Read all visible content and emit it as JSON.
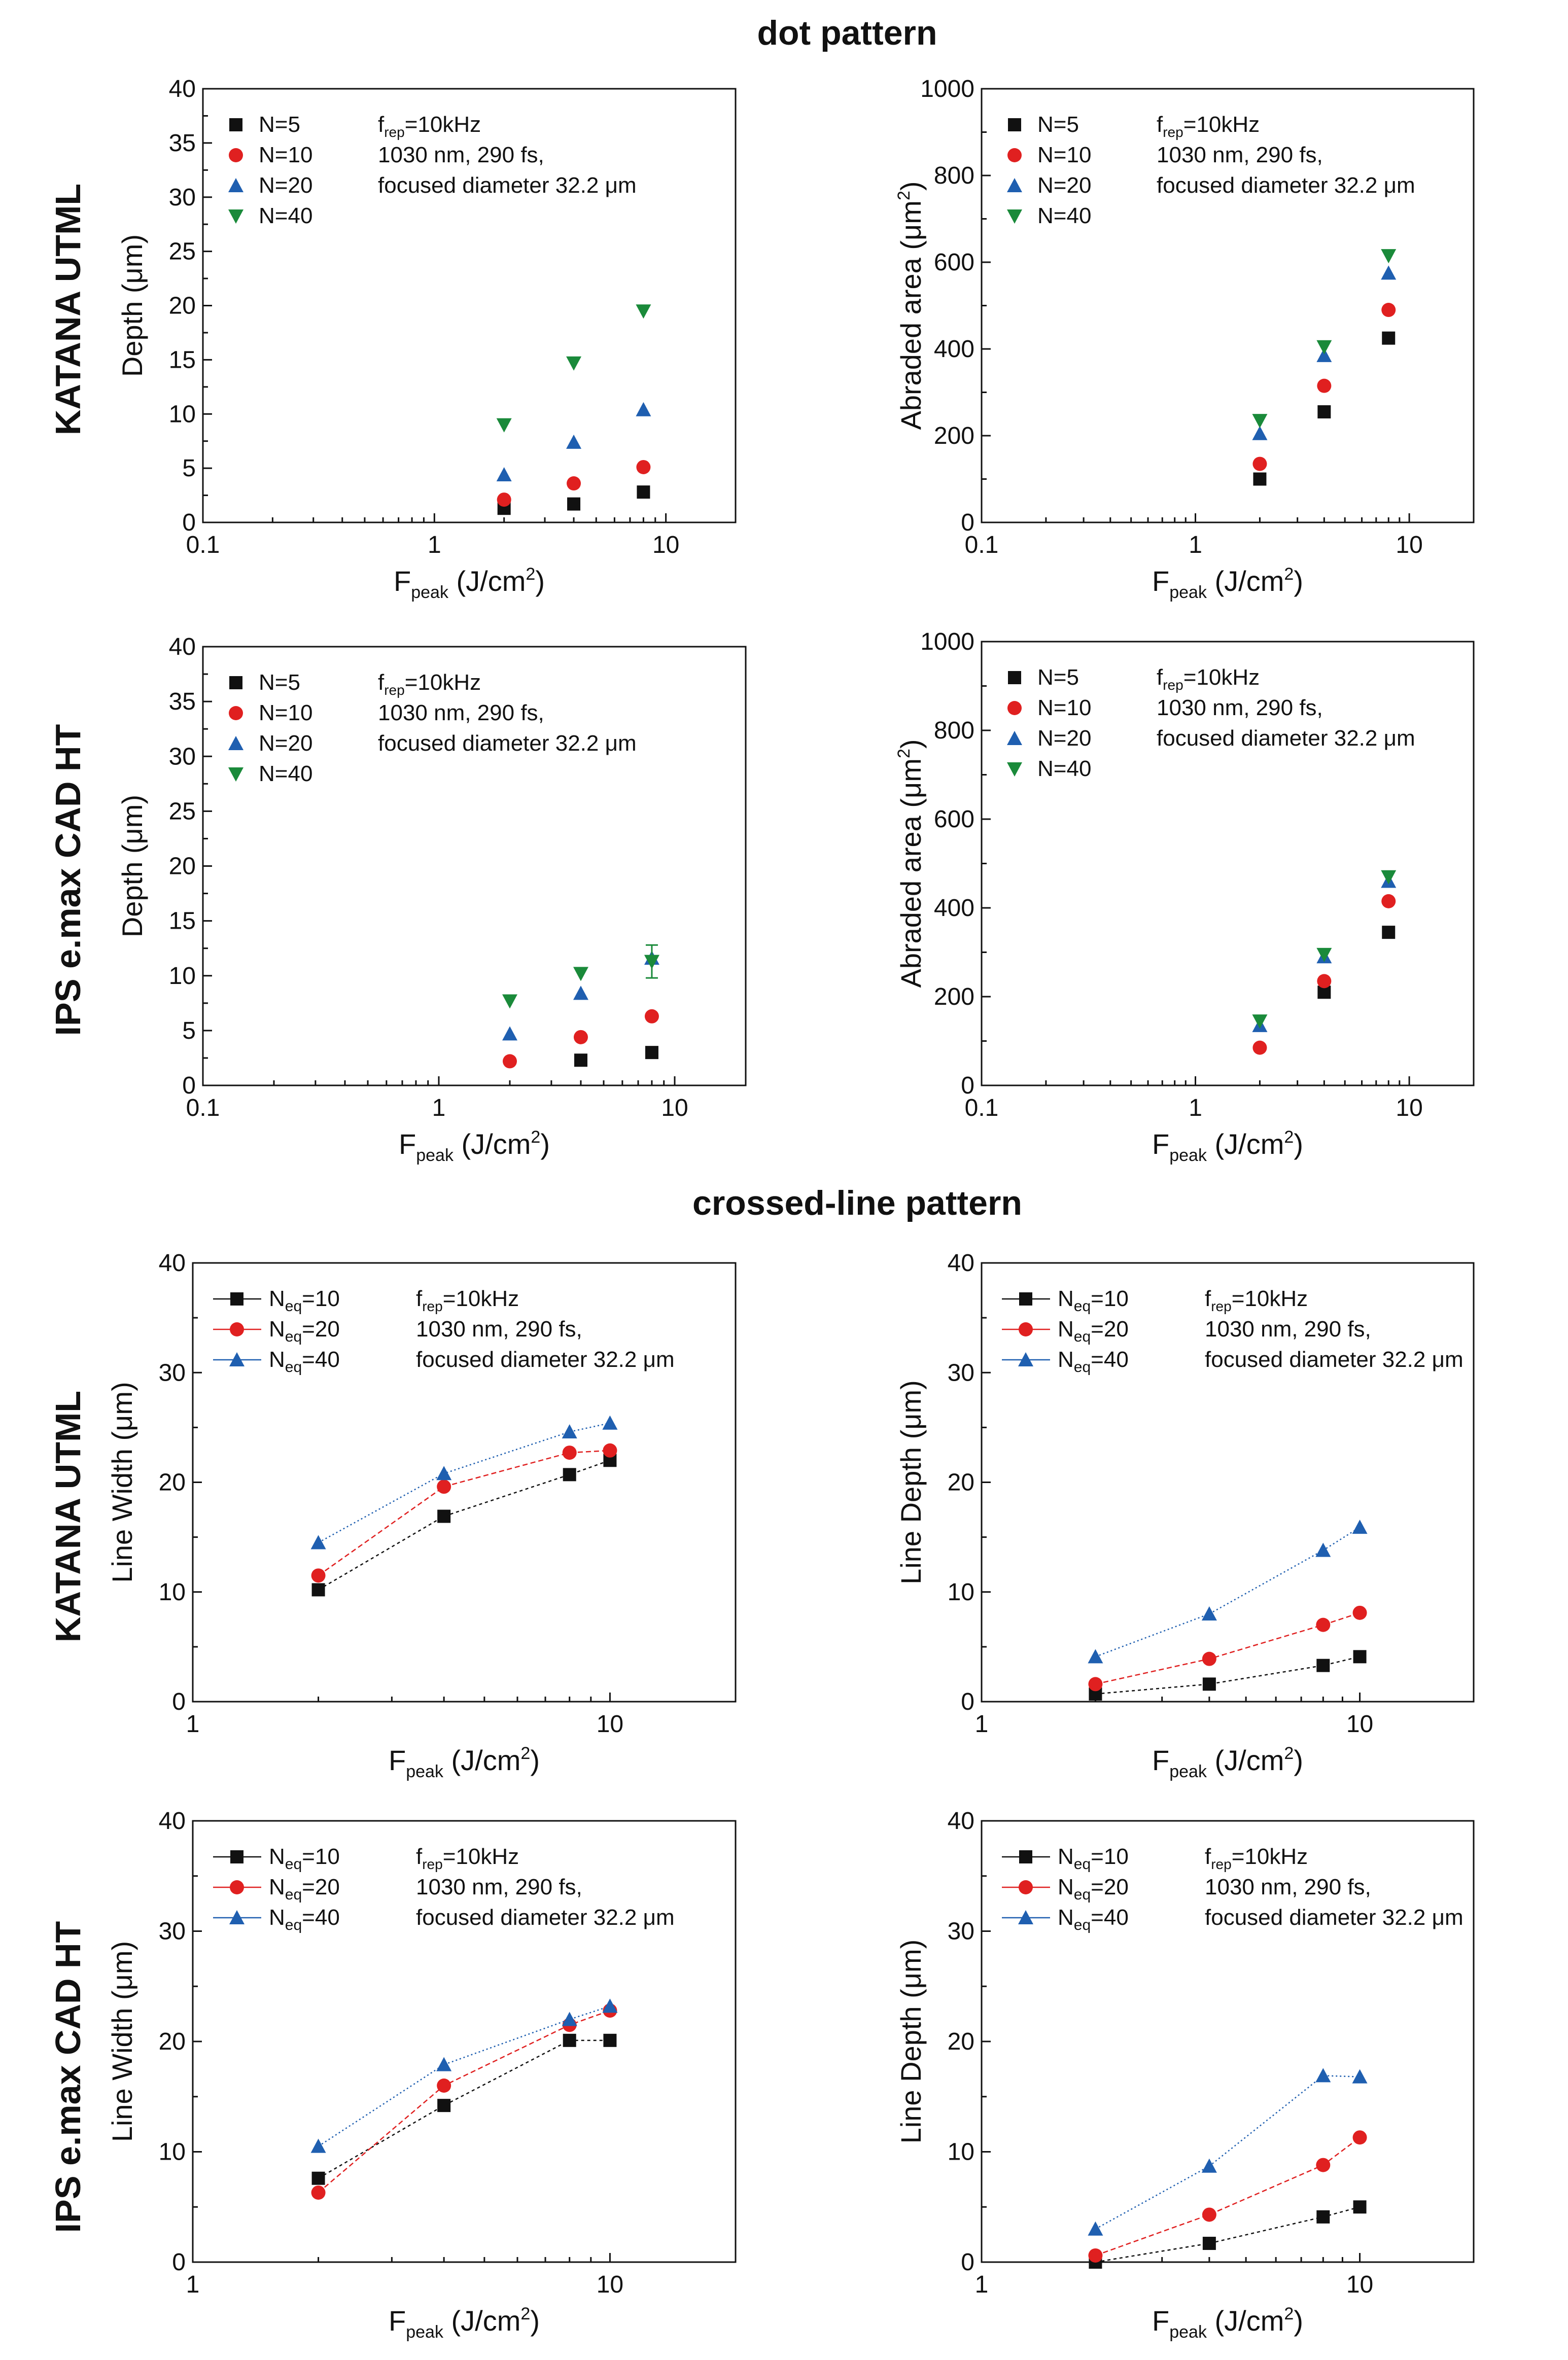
{
  "figure": {
    "dot_title": "dot pattern",
    "line_title": "crossed-line pattern",
    "row_labels": [
      "KATANA UTML",
      "IPS e.max CAD HT",
      "KATANA UTML",
      "IPS e.max CAD HT"
    ]
  },
  "colors": {
    "N5": "#111111",
    "N10": "#e02020",
    "N20": "#1f5fb0",
    "N40": "#1a8a3a"
  },
  "chart_data": [
    {
      "id": "dot-katana-depth",
      "type": "scatter",
      "xscale": "log",
      "xlim": [
        0.1,
        20
      ],
      "ylim": [
        0,
        40
      ],
      "xticks": [
        "0.1",
        "1",
        "10"
      ],
      "yticks": [
        "0",
        "5",
        "10",
        "15",
        "20",
        "25",
        "30",
        "35",
        "40"
      ],
      "xlabel_main": "F",
      "xlabel_sub": "peak",
      "xlabel_rest": " (J/cm",
      "xlabel_sup": "2",
      "xlabel_end": ")",
      "ylabel_main": "Depth (μm)",
      "ylabel_sup": "",
      "ylabel_end": "",
      "legend_style": "dot",
      "notes": [
        "f",
        "rep",
        "=10kHz",
        "1030 nm, 290 fs,",
        "focused diameter 32.2 μm"
      ],
      "series": [
        {
          "name": "N=5",
          "nm": "N",
          "sub": "",
          "rest": "=5",
          "marker": "square",
          "color": "#111111",
          "x": [
            2,
            4,
            8
          ],
          "y": [
            1.3,
            1.7,
            2.8
          ]
        },
        {
          "name": "N=10",
          "nm": "N",
          "sub": "",
          "rest": "=10",
          "marker": "circle",
          "color": "#e02020",
          "x": [
            2,
            4,
            8
          ],
          "y": [
            2.1,
            3.6,
            5.1
          ]
        },
        {
          "name": "N=20",
          "nm": "N",
          "sub": "",
          "rest": "=20",
          "marker": "triangle",
          "color": "#1f5fb0",
          "x": [
            2,
            4,
            8
          ],
          "y": [
            4.4,
            7.4,
            10.4
          ]
        },
        {
          "name": "N=40",
          "nm": "N",
          "sub": "",
          "rest": "=40",
          "marker": "triangle-down",
          "color": "#1a8a3a",
          "x": [
            2,
            4,
            8
          ],
          "y": [
            9.0,
            14.7,
            19.5
          ]
        }
      ]
    },
    {
      "id": "dot-katana-area",
      "type": "scatter",
      "xscale": "log",
      "xlim": [
        0.1,
        20
      ],
      "ylim": [
        0,
        1000
      ],
      "xticks": [
        "0.1",
        "1",
        "10"
      ],
      "yticks": [
        "0",
        "200",
        "400",
        "600",
        "800",
        "1000"
      ],
      "xlabel_main": "F",
      "xlabel_sub": "peak",
      "xlabel_rest": " (J/cm",
      "xlabel_sup": "2",
      "xlabel_end": ")",
      "ylabel_main": "Abraded area (μm",
      "ylabel_sup": "2",
      "ylabel_end": ")",
      "legend_style": "dot",
      "notes": [
        "f",
        "rep",
        "=10kHz",
        "1030 nm, 290 fs,",
        "focused diameter 32.2 μm"
      ],
      "series": [
        {
          "name": "N=5",
          "nm": "N",
          "sub": "",
          "rest": "=5",
          "marker": "square",
          "color": "#111111",
          "x": [
            2,
            4,
            8
          ],
          "y": [
            100,
            255,
            425
          ]
        },
        {
          "name": "N=10",
          "nm": "N",
          "sub": "",
          "rest": "=10",
          "marker": "circle",
          "color": "#e02020",
          "x": [
            2,
            4,
            8
          ],
          "y": [
            135,
            315,
            490
          ]
        },
        {
          "name": "N=20",
          "nm": "N",
          "sub": "",
          "rest": "=20",
          "marker": "triangle",
          "color": "#1f5fb0",
          "x": [
            2,
            4,
            8
          ],
          "y": [
            205,
            385,
            575
          ]
        },
        {
          "name": "N=40",
          "nm": "N",
          "sub": "",
          "rest": "=40",
          "marker": "triangle-down",
          "color": "#1a8a3a",
          "x": [
            2,
            4,
            8
          ],
          "y": [
            235,
            405,
            615
          ]
        }
      ]
    },
    {
      "id": "dot-ips-depth",
      "type": "scatter",
      "xscale": "log",
      "xlim": [
        0.1,
        20
      ],
      "ylim": [
        0,
        40
      ],
      "xticks": [
        "0.1",
        "1",
        "10"
      ],
      "yticks": [
        "0",
        "5",
        "10",
        "15",
        "20",
        "25",
        "30",
        "35",
        "40"
      ],
      "xlabel_main": "F",
      "xlabel_sub": "peak",
      "xlabel_rest": " (J/cm",
      "xlabel_sup": "2",
      "xlabel_end": ")",
      "ylabel_main": "Depth (μm)",
      "ylabel_sup": "",
      "ylabel_end": "",
      "legend_style": "dot",
      "notes": [
        "f",
        "rep",
        "=10kHz",
        "1030 nm, 290 fs,",
        "focused diameter 32.2 μm"
      ],
      "series": [
        {
          "name": "N=5",
          "nm": "N",
          "sub": "",
          "rest": "=5",
          "marker": "square",
          "color": "#111111",
          "x": [
            4,
            8
          ],
          "y": [
            2.3,
            3.0
          ]
        },
        {
          "name": "N=10",
          "nm": "N",
          "sub": "",
          "rest": "=10",
          "marker": "circle",
          "color": "#e02020",
          "x": [
            2,
            4,
            8
          ],
          "y": [
            2.2,
            4.4,
            6.3
          ]
        },
        {
          "name": "N=20",
          "nm": "N",
          "sub": "",
          "rest": "=20",
          "marker": "triangle",
          "color": "#1f5fb0",
          "x": [
            2,
            4,
            8
          ],
          "y": [
            4.7,
            8.4,
            11.6
          ]
        },
        {
          "name": "N=40",
          "nm": "N",
          "sub": "",
          "rest": "=40",
          "marker": "triangle-down",
          "color": "#1a8a3a",
          "x": [
            2,
            4,
            8
          ],
          "y": [
            7.7,
            10.2,
            11.3
          ],
          "err": [
            0,
            0,
            1.5
          ]
        }
      ]
    },
    {
      "id": "dot-ips-area",
      "type": "scatter",
      "xscale": "log",
      "xlim": [
        0.1,
        20
      ],
      "ylim": [
        0,
        1000
      ],
      "xticks": [
        "0.1",
        "1",
        "10"
      ],
      "yticks": [
        "0",
        "200",
        "400",
        "600",
        "800",
        "1000"
      ],
      "xlabel_main": "F",
      "xlabel_sub": "peak",
      "xlabel_rest": " (J/cm",
      "xlabel_sup": "2",
      "xlabel_end": ")",
      "ylabel_main": "Abraded area (μm",
      "ylabel_sup": "2",
      "ylabel_end": ")",
      "legend_style": "dot",
      "notes": [
        "f",
        "rep",
        "=10kHz",
        "1030 nm, 290 fs,",
        "focused diameter 32.2 μm"
      ],
      "series": [
        {
          "name": "N=5",
          "nm": "N",
          "sub": "",
          "rest": "=5",
          "marker": "square",
          "color": "#111111",
          "x": [
            4,
            8
          ],
          "y": [
            210,
            345
          ]
        },
        {
          "name": "N=10",
          "nm": "N",
          "sub": "",
          "rest": "=10",
          "marker": "circle",
          "color": "#e02020",
          "x": [
            2,
            4,
            8
          ],
          "y": [
            85,
            235,
            415
          ]
        },
        {
          "name": "N=20",
          "nm": "N",
          "sub": "",
          "rest": "=20",
          "marker": "triangle",
          "color": "#1f5fb0",
          "x": [
            2,
            4,
            8
          ],
          "y": [
            135,
            290,
            460
          ]
        },
        {
          "name": "N=40",
          "nm": "N",
          "sub": "",
          "rest": "=40",
          "marker": "triangle-down",
          "color": "#1a8a3a",
          "x": [
            2,
            4,
            8
          ],
          "y": [
            145,
            295,
            470
          ]
        }
      ]
    },
    {
      "id": "line-katana-width",
      "type": "line",
      "xscale": "log",
      "xlim": [
        1,
        20
      ],
      "ylim": [
        0,
        40
      ],
      "xticks": [
        "1",
        "10"
      ],
      "yticks": [
        "0",
        "10",
        "20",
        "30",
        "40"
      ],
      "xlabel_main": "F",
      "xlabel_sub": "peak",
      "xlabel_rest": " (J/cm",
      "xlabel_sup": "2",
      "xlabel_end": ")",
      "ylabel_main": "Line Width (μm)",
      "ylabel_sup": "",
      "ylabel_end": "",
      "legend_style": "line",
      "notes": [
        "f",
        "rep",
        "=10kHz",
        "1030 nm, 290 fs,",
        "focused diameter 32.2 μm"
      ],
      "series": [
        {
          "name": "Neq=10",
          "nm": "N",
          "sub": "eq",
          "rest": "=10",
          "marker": "square",
          "color": "#111111",
          "x": [
            2,
            4,
            8,
            10
          ],
          "y": [
            10.2,
            16.9,
            20.7,
            22.0
          ]
        },
        {
          "name": "Neq=20",
          "nm": "N",
          "sub": "eq",
          "rest": "=20",
          "marker": "circle",
          "color": "#e02020",
          "x": [
            2,
            4,
            8,
            10
          ],
          "y": [
            11.5,
            19.6,
            22.7,
            22.9
          ]
        },
        {
          "name": "Neq=40",
          "nm": "N",
          "sub": "eq",
          "rest": "=40",
          "marker": "triangle",
          "color": "#1f5fb0",
          "x": [
            2,
            4,
            8,
            10
          ],
          "y": [
            14.5,
            20.8,
            24.6,
            25.4
          ]
        }
      ]
    },
    {
      "id": "line-katana-depth",
      "type": "line",
      "xscale": "log",
      "xlim": [
        1,
        20
      ],
      "ylim": [
        0,
        40
      ],
      "xticks": [
        "1",
        "10"
      ],
      "yticks": [
        "0",
        "10",
        "20",
        "30",
        "40"
      ],
      "xlabel_main": "F",
      "xlabel_sub": "peak",
      "xlabel_rest": " (J/cm",
      "xlabel_sup": "2",
      "xlabel_end": ")",
      "ylabel_main": "Line Depth (μm)",
      "ylabel_sup": "",
      "ylabel_end": "",
      "legend_style": "line",
      "notes": [
        "f",
        "rep",
        "=10kHz",
        "1030 nm, 290 fs,",
        "focused diameter 32.2 μm"
      ],
      "series": [
        {
          "name": "Neq=10",
          "nm": "N",
          "sub": "eq",
          "rest": "=10",
          "marker": "square",
          "color": "#111111",
          "x": [
            2,
            4,
            8,
            10
          ],
          "y": [
            0.7,
            1.6,
            3.3,
            4.1
          ]
        },
        {
          "name": "Neq=20",
          "nm": "N",
          "sub": "eq",
          "rest": "=20",
          "marker": "circle",
          "color": "#e02020",
          "x": [
            2,
            4,
            8,
            10
          ],
          "y": [
            1.6,
            3.9,
            7.0,
            8.1
          ]
        },
        {
          "name": "Neq=40",
          "nm": "N",
          "sub": "eq",
          "rest": "=40",
          "marker": "triangle",
          "color": "#1f5fb0",
          "x": [
            2,
            4,
            8,
            10
          ],
          "y": [
            4.1,
            8.0,
            13.8,
            15.9
          ]
        }
      ]
    },
    {
      "id": "line-ips-width",
      "type": "line",
      "xscale": "log",
      "xlim": [
        1,
        20
      ],
      "ylim": [
        0,
        40
      ],
      "xticks": [
        "1",
        "10"
      ],
      "yticks": [
        "0",
        "10",
        "20",
        "30",
        "40"
      ],
      "xlabel_main": "F",
      "xlabel_sub": "peak",
      "xlabel_rest": " (J/cm",
      "xlabel_sup": "2",
      "xlabel_end": ")",
      "ylabel_main": "Line Width (μm)",
      "ylabel_sup": "",
      "ylabel_end": "",
      "legend_style": "line",
      "notes": [
        "f",
        "rep",
        "=10kHz",
        "1030 nm, 290 fs,",
        "focused diameter 32.2 μm"
      ],
      "series": [
        {
          "name": "Neq=10",
          "nm": "N",
          "sub": "eq",
          "rest": "=10",
          "marker": "square",
          "color": "#111111",
          "x": [
            2,
            4,
            8,
            10
          ],
          "y": [
            7.6,
            14.2,
            20.1,
            20.1
          ]
        },
        {
          "name": "Neq=20",
          "nm": "N",
          "sub": "eq",
          "rest": "=20",
          "marker": "circle",
          "color": "#e02020",
          "x": [
            2,
            4,
            8,
            10
          ],
          "y": [
            6.3,
            16.0,
            21.5,
            22.8
          ]
        },
        {
          "name": "Neq=40",
          "nm": "N",
          "sub": "eq",
          "rest": "=40",
          "marker": "triangle",
          "color": "#1f5fb0",
          "x": [
            2,
            4,
            8,
            10
          ],
          "y": [
            10.5,
            17.9,
            22.0,
            23.2
          ]
        }
      ]
    },
    {
      "id": "line-ips-depth",
      "type": "line",
      "xscale": "log",
      "xlim": [
        1,
        20
      ],
      "ylim": [
        0,
        40
      ],
      "xticks": [
        "1",
        "10"
      ],
      "yticks": [
        "0",
        "10",
        "20",
        "30",
        "40"
      ],
      "xlabel_main": "F",
      "xlabel_sub": "peak",
      "xlabel_rest": " (J/cm",
      "xlabel_sup": "2",
      "xlabel_end": ")",
      "ylabel_main": "Line Depth (μm)",
      "ylabel_sup": "",
      "ylabel_end": "",
      "legend_style": "line",
      "notes": [
        "f",
        "rep",
        "=10kHz",
        "1030 nm, 290 fs,",
        "focused diameter 32.2 μm"
      ],
      "series": [
        {
          "name": "Neq=10",
          "nm": "N",
          "sub": "eq",
          "rest": "=10",
          "marker": "square",
          "color": "#111111",
          "x": [
            2,
            4,
            8,
            10
          ],
          "y": [
            0,
            1.7,
            4.1,
            5.0
          ]
        },
        {
          "name": "Neq=20",
          "nm": "N",
          "sub": "eq",
          "rest": "=20",
          "marker": "circle",
          "color": "#e02020",
          "x": [
            2,
            4,
            8,
            10
          ],
          "y": [
            0.6,
            4.3,
            8.8,
            11.3
          ]
        },
        {
          "name": "Neq=40",
          "nm": "N",
          "sub": "eq",
          "rest": "=40",
          "marker": "triangle",
          "color": "#1f5fb0",
          "x": [
            2,
            4,
            8,
            10
          ],
          "y": [
            3.0,
            8.7,
            16.9,
            16.8
          ]
        }
      ]
    }
  ]
}
